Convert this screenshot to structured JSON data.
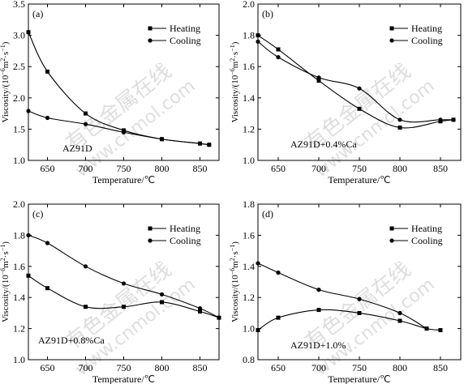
{
  "watermark": {
    "cn": "有色金属在线",
    "url": "www.cnmol.com"
  },
  "chart_data": [
    {
      "type": "line",
      "panel_label": "(a)",
      "annotation": "AZ91D",
      "xlabel": "Temperature/℃",
      "ylabel": "Viscosity/(10",
      "ylabel_exp": "−6",
      "ylabel_tail": "m",
      "ylabel_exp2": "2",
      "ylabel_tail2": "·s",
      "ylabel_exp3": "−1",
      "ylabel_end": ")",
      "xlim": [
        625,
        875
      ],
      "ylim": [
        1.0,
        3.5
      ],
      "xticks": [
        650,
        700,
        750,
        800,
        850
      ],
      "yticks": [
        "1.0",
        "1.5",
        "2.0",
        "2.5",
        "3.0",
        "3.5"
      ],
      "grid": false,
      "legend_position": "top-right",
      "series": [
        {
          "name": "Heating",
          "marker": "square",
          "x": [
            625,
            650,
            700,
            750,
            800,
            850,
            862
          ],
          "y": [
            3.05,
            2.42,
            1.75,
            1.48,
            1.34,
            1.27,
            1.25
          ]
        },
        {
          "name": "Cooling",
          "marker": "circle",
          "x": [
            625,
            650,
            700,
            750,
            800,
            850,
            862
          ],
          "y": [
            1.79,
            1.68,
            1.58,
            1.45,
            1.34,
            1.27,
            1.25
          ]
        }
      ]
    },
    {
      "type": "line",
      "panel_label": "(b)",
      "annotation": "AZ91D+0.4%Ca",
      "xlabel": "Temperature/℃",
      "ylabel": "Viscosity/(10",
      "ylabel_exp": "−6",
      "ylabel_tail": "m",
      "ylabel_exp2": "2",
      "ylabel_tail2": "·s",
      "ylabel_exp3": "−1",
      "ylabel_end": ")",
      "xlim": [
        625,
        875
      ],
      "ylim": [
        1.0,
        2.0
      ],
      "xticks": [
        650,
        700,
        750,
        800,
        850
      ],
      "yticks": [
        "1.0",
        "1.2",
        "1.4",
        "1.6",
        "1.8",
        "2.0"
      ],
      "grid": false,
      "legend_position": "top-right",
      "series": [
        {
          "name": "Heating",
          "marker": "square",
          "x": [
            625,
            650,
            700,
            750,
            800,
            850,
            866
          ],
          "y": [
            1.8,
            1.71,
            1.51,
            1.33,
            1.21,
            1.25,
            1.26
          ]
        },
        {
          "name": "Cooling",
          "marker": "circle",
          "x": [
            625,
            650,
            700,
            750,
            800,
            850,
            866
          ],
          "y": [
            1.76,
            1.66,
            1.53,
            1.46,
            1.26,
            1.26,
            1.26
          ]
        }
      ]
    },
    {
      "type": "line",
      "panel_label": "(c)",
      "annotation": "AZ91D+0.8%Ca",
      "xlabel": "Temperature/℃",
      "ylabel": "Viscosity/(10",
      "ylabel_exp": "−6",
      "ylabel_tail": "m",
      "ylabel_exp2": "2",
      "ylabel_tail2": "·s",
      "ylabel_exp3": "−1",
      "ylabel_end": ")",
      "xlim": [
        625,
        875
      ],
      "ylim": [
        1.0,
        2.0
      ],
      "xticks": [
        650,
        700,
        750,
        800,
        850
      ],
      "yticks": [
        "1.0",
        "1.2",
        "1.4",
        "1.6",
        "1.8",
        "2.0"
      ],
      "grid": false,
      "legend_position": "top-right",
      "series": [
        {
          "name": "Heating",
          "marker": "square",
          "x": [
            625,
            650,
            700,
            750,
            800,
            850,
            875
          ],
          "y": [
            1.54,
            1.46,
            1.34,
            1.34,
            1.37,
            1.31,
            1.27
          ]
        },
        {
          "name": "Cooling",
          "marker": "circle",
          "x": [
            625,
            650,
            700,
            750,
            800,
            850,
            875
          ],
          "y": [
            1.8,
            1.75,
            1.6,
            1.49,
            1.42,
            1.33,
            1.27
          ]
        }
      ]
    },
    {
      "type": "line",
      "panel_label": "(d)",
      "annotation": "AZ91D+1.0%",
      "xlabel": "Temperature/℃",
      "ylabel": "Viscosity/(10",
      "ylabel_exp": "−6",
      "ylabel_tail": "m",
      "ylabel_exp2": "2",
      "ylabel_tail2": "·s",
      "ylabel_exp3": "−1",
      "ylabel_end": ")",
      "xlim": [
        625,
        875
      ],
      "ylim": [
        0.8,
        1.8
      ],
      "xticks": [
        650,
        700,
        750,
        800,
        850
      ],
      "yticks": [
        "0.8",
        "1.0",
        "1.2",
        "1.4",
        "1.6",
        "1.8"
      ],
      "grid": false,
      "legend_position": "top-right",
      "series": [
        {
          "name": "Heating",
          "marker": "square",
          "x": [
            625,
            650,
            700,
            750,
            800,
            833,
            850
          ],
          "y": [
            0.99,
            1.07,
            1.12,
            1.1,
            1.05,
            1.0,
            0.99
          ]
        },
        {
          "name": "Cooling",
          "marker": "circle",
          "x": [
            625,
            650,
            700,
            750,
            800,
            833
          ],
          "y": [
            1.42,
            1.36,
            1.25,
            1.19,
            1.1,
            1.0
          ]
        }
      ]
    }
  ]
}
